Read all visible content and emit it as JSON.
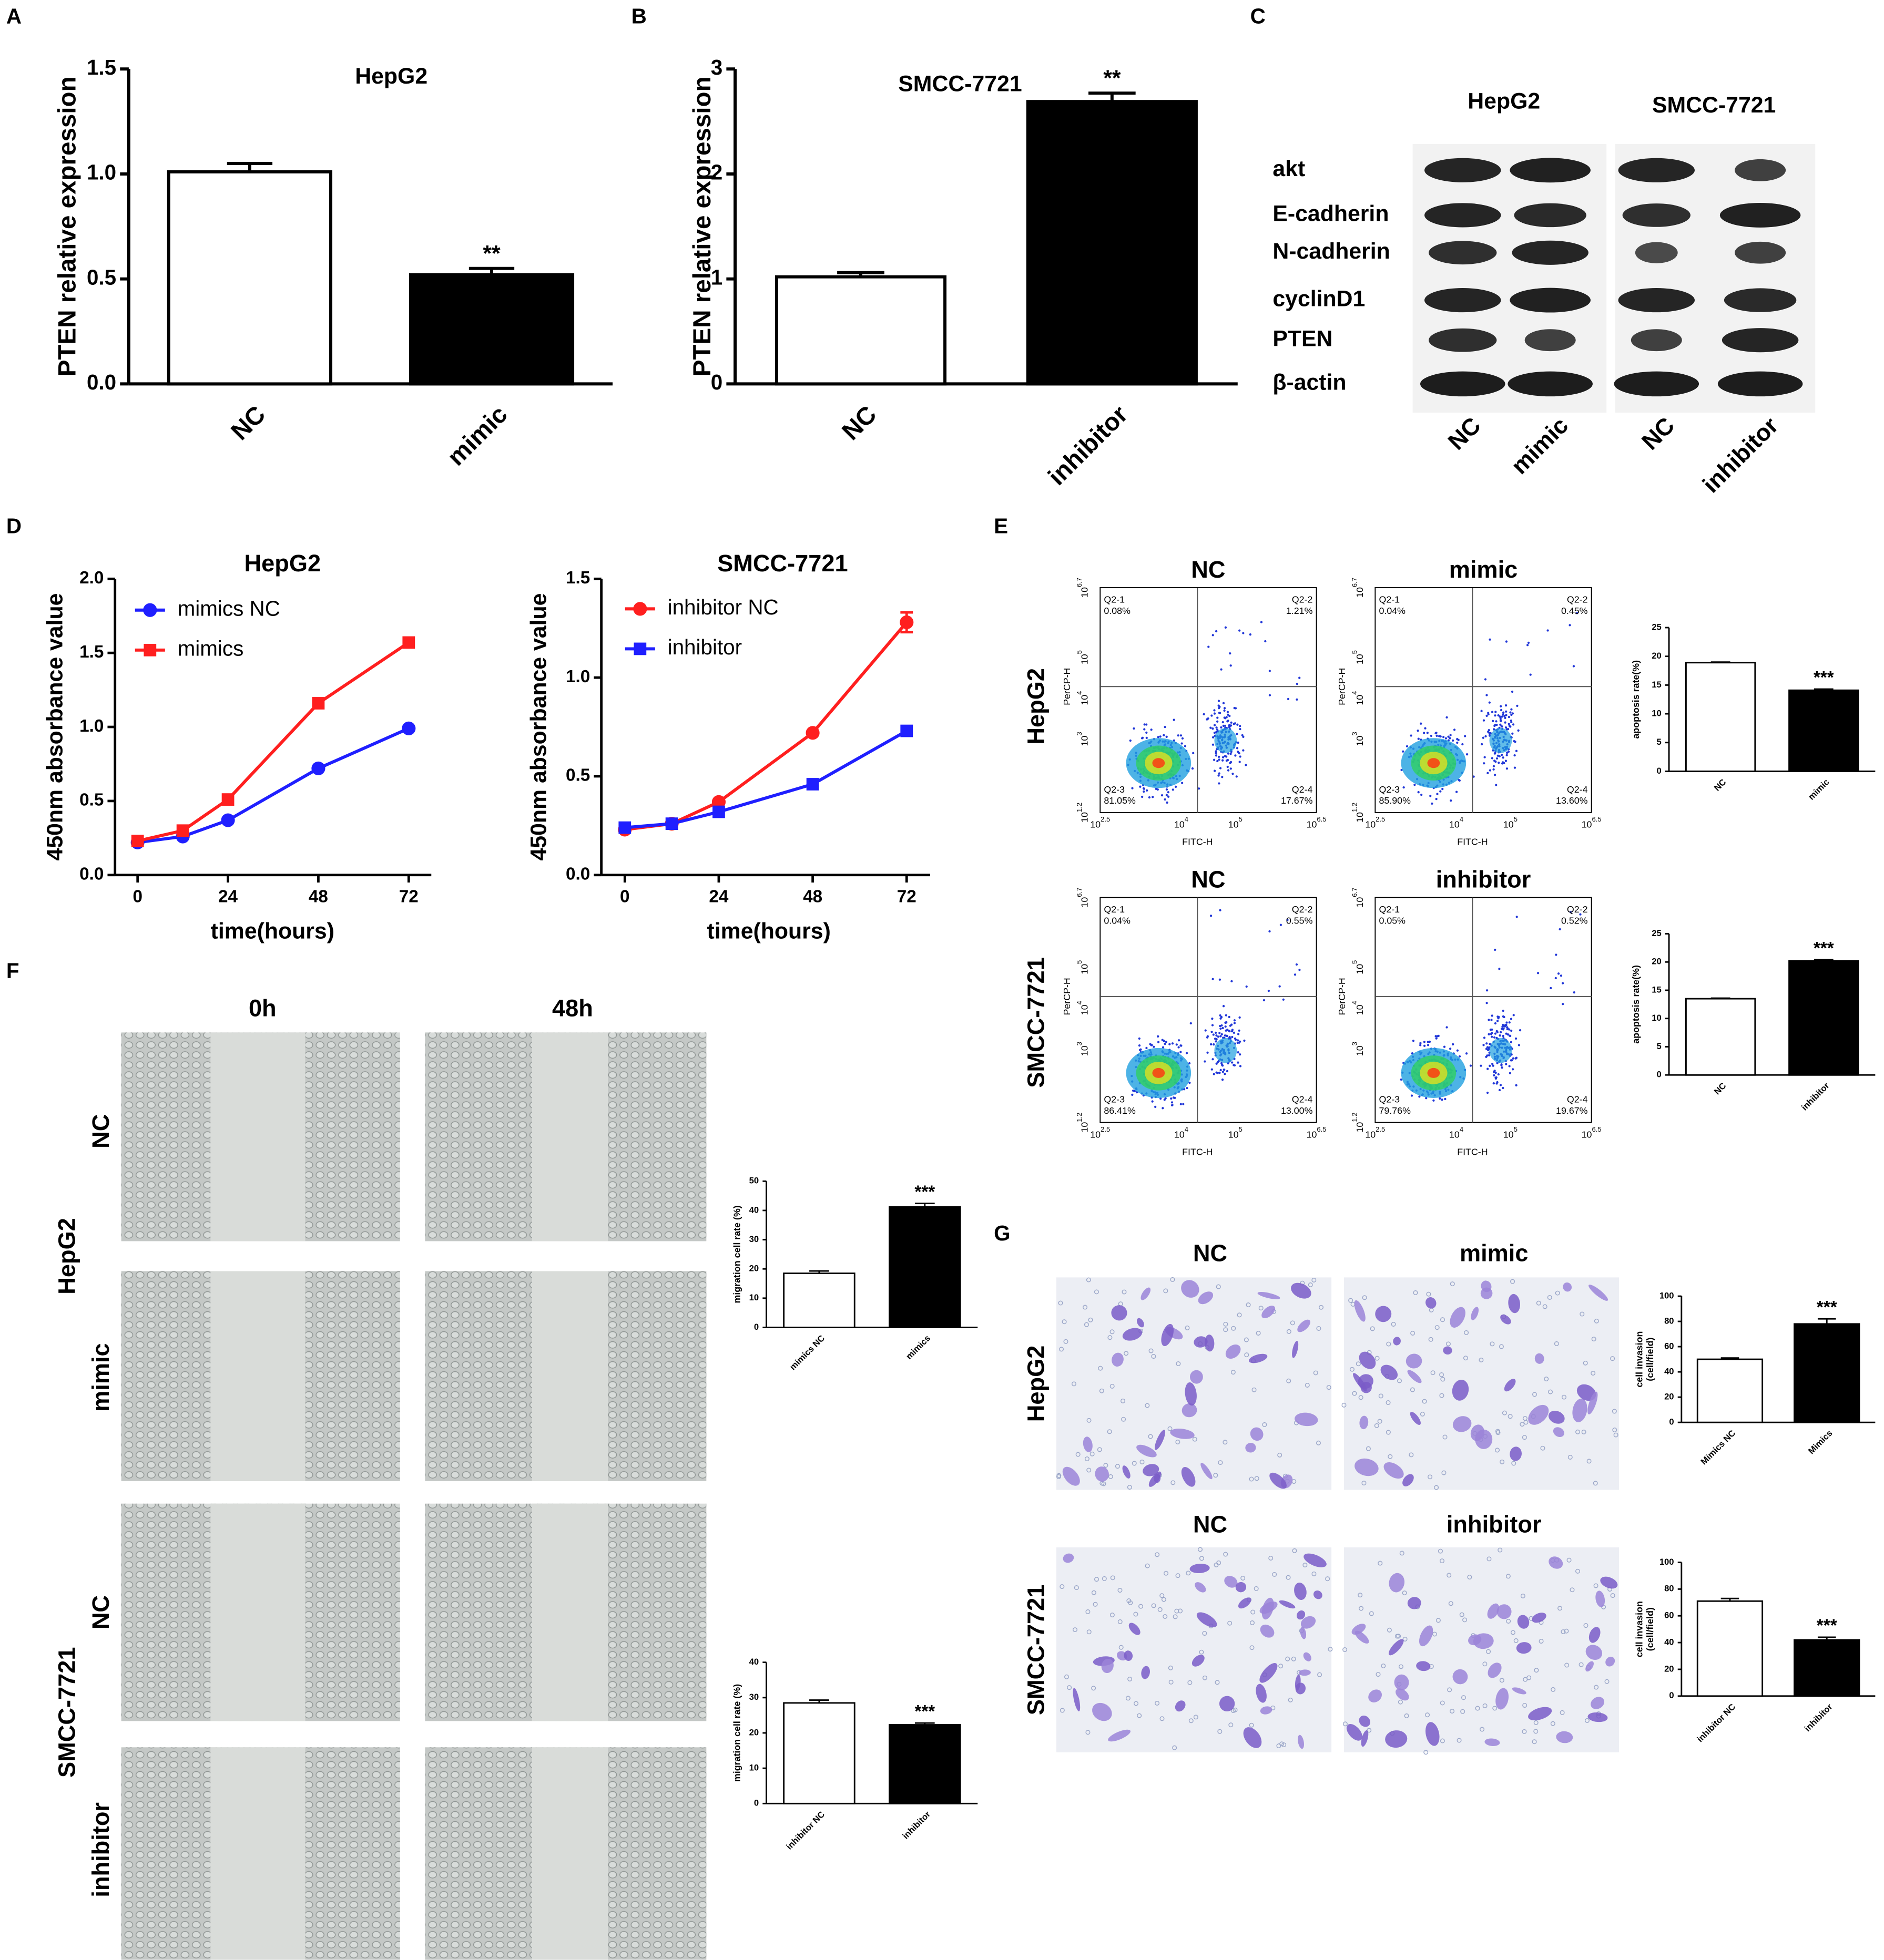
{
  "panels": [
    "A",
    "B",
    "C",
    "D",
    "E",
    "F",
    "G"
  ],
  "chart_data": [
    {
      "type": "bar",
      "title": "HepG2",
      "y_label": "PTEN relative expression",
      "categories": [
        "NC",
        "mimic"
      ],
      "values": [
        1.01,
        0.52
      ],
      "errors": [
        0.04,
        0.03
      ],
      "colors": [
        "#ffffff",
        "#000000"
      ],
      "significance": [
        null,
        "**"
      ],
      "ylim": [
        0,
        1.5
      ],
      "yticks": [
        {
          "value": 0,
          "label": "0.0"
        },
        0.5,
        {
          "value": 1,
          "label": "1.0"
        },
        1.5
      ]
    },
    {
      "type": "bar",
      "title": "SMCC-7721",
      "y_label": "PTEN relative expression",
      "categories": [
        "NC",
        "inhibitor"
      ],
      "values": [
        1.02,
        2.69
      ],
      "errors": [
        0.04,
        0.08
      ],
      "colors": [
        "#ffffff",
        "#000000"
      ],
      "significance": [
        null,
        "**"
      ],
      "ylim": [
        0,
        3
      ],
      "yticks": [
        0,
        1,
        2,
        3
      ]
    },
    {
      "type": "line",
      "title": "HepG2",
      "x_label": "time(hours)",
      "y_label": "450nm absorbance value",
      "x": [
        0,
        12,
        24,
        48,
        72
      ],
      "series": [
        {
          "name": "mimics NC",
          "color": "#1f1fff",
          "marker": "circle",
          "values": [
            0.22,
            0.26,
            0.37,
            0.72,
            0.99
          ]
        },
        {
          "name": "mimics",
          "color": "#ff1f1f",
          "marker": "square",
          "values": [
            0.23,
            0.3,
            0.51,
            1.16,
            1.57
          ]
        }
      ],
      "xlim": [
        -6,
        78
      ],
      "xticks": [
        0,
        24,
        48,
        72
      ],
      "ylim": [
        0,
        2
      ],
      "yticks": [
        {
          "value": 0,
          "label": "0.0"
        },
        0.5,
        {
          "value": 1,
          "label": "1.0"
        },
        1.5,
        {
          "value": 2,
          "label": "2.0"
        }
      ]
    },
    {
      "type": "line",
      "title": "SMCC-7721",
      "x_label": "time(hours)",
      "y_label": "450nm absorbance value",
      "x": [
        0,
        12,
        24,
        48,
        72
      ],
      "series": [
        {
          "name": "inhibitor NC",
          "color": "#ff1f1f",
          "marker": "circle",
          "values": [
            0.23,
            0.26,
            0.37,
            0.72,
            1.28
          ],
          "errors": [
            null,
            null,
            null,
            null,
            0.05
          ]
        },
        {
          "name": "inhibitor",
          "color": "#1f1fff",
          "marker": "square",
          "values": [
            0.24,
            0.26,
            0.32,
            0.46,
            0.73
          ]
        }
      ],
      "xlim": [
        -6,
        78
      ],
      "xticks": [
        0,
        24,
        48,
        72
      ],
      "ylim": [
        0,
        1.5
      ],
      "yticks": [
        {
          "value": 0,
          "label": "0.0"
        },
        0.5,
        {
          "value": 1,
          "label": "1.0"
        },
        1.5
      ]
    },
    {
      "type": "bar",
      "y_label": "apoptosis rate(%)",
      "categories": [
        "NC",
        "mimic"
      ],
      "values": [
        18.9,
        14.1
      ],
      "errors": [
        0.1,
        0.2
      ],
      "colors": [
        "#ffffff",
        "#000000"
      ],
      "significance": [
        null,
        "***"
      ],
      "ylim": [
        0,
        25
      ],
      "yticks": [
        0,
        5,
        10,
        15,
        20,
        25
      ]
    },
    {
      "type": "bar",
      "y_label": "apoptosis rate(%)",
      "categories": [
        "NC",
        "inhibitor"
      ],
      "values": [
        13.5,
        20.2
      ],
      "errors": [
        0.1,
        0.2
      ],
      "colors": [
        "#ffffff",
        "#000000"
      ],
      "significance": [
        null,
        "***"
      ],
      "ylim": [
        0,
        25
      ],
      "yticks": [
        0,
        5,
        10,
        15,
        20,
        25
      ]
    },
    {
      "type": "bar",
      "y_label": "migration cell rate (%)",
      "categories": [
        "mimics NC",
        "mimics"
      ],
      "values": [
        18.5,
        41.2
      ],
      "errors": [
        0.8,
        1.2
      ],
      "colors": [
        "#ffffff",
        "#000000"
      ],
      "significance": [
        null,
        "***"
      ],
      "ylim": [
        0,
        50
      ],
      "yticks": [
        0,
        10,
        20,
        30,
        40,
        50
      ]
    },
    {
      "type": "bar",
      "y_label": "migration cell rate (%)",
      "categories": [
        "inhibitor NC",
        "inhibitor"
      ],
      "values": [
        28.5,
        22.3
      ],
      "errors": [
        0.8,
        0.5
      ],
      "colors": [
        "#ffffff",
        "#000000"
      ],
      "significance": [
        null,
        "***"
      ],
      "ylim": [
        0,
        40
      ],
      "yticks": [
        0,
        10,
        20,
        30,
        40
      ]
    },
    {
      "type": "bar",
      "y_label": [
        "cell invasion",
        "(cell/field)"
      ],
      "categories": [
        "Mimics NC",
        "Mimics"
      ],
      "values": [
        50,
        78
      ],
      "errors": [
        1,
        4
      ],
      "colors": [
        "#ffffff",
        "#000000"
      ],
      "significance": [
        null,
        "***"
      ],
      "ylim": [
        0,
        100
      ],
      "yticks": [
        0,
        20,
        40,
        60,
        80,
        100
      ]
    },
    {
      "type": "bar",
      "y_label": [
        "cell invasion",
        "(cell/field)"
      ],
      "categories": [
        "inhibitor NC",
        "inhibitor"
      ],
      "values": [
        71,
        42
      ],
      "errors": [
        2,
        2
      ],
      "colors": [
        "#ffffff",
        "#000000"
      ],
      "significance": [
        null,
        "***"
      ],
      "ylim": [
        0,
        100
      ],
      "yticks": [
        0,
        20,
        40,
        60,
        80,
        100
      ]
    }
  ],
  "western_blot": {
    "cell_lines": [
      "HepG2",
      "SMCC-7721"
    ],
    "proteins": [
      "akt",
      "E-cadherin",
      "N-cadherin",
      "cyclinD1",
      "PTEN",
      "β-actin"
    ],
    "lanes": [
      "NC",
      "mimic",
      "NC",
      "inhibitor"
    ]
  },
  "flow_cytometry": {
    "rows": [
      "HepG2",
      "SMCC-7721"
    ],
    "x_label": "FITC-H",
    "y_label": "PerCP-H",
    "x_ticks": [
      [
        "10",
        "2.5"
      ],
      [
        "10",
        "4"
      ],
      [
        "10",
        "5"
      ],
      [
        "10",
        "6.5"
      ]
    ],
    "y_ticks": [
      [
        "10",
        "1.2"
      ],
      [
        "10",
        "3"
      ],
      [
        "10",
        "4"
      ],
      [
        "10",
        "5"
      ],
      [
        "10",
        "6.7"
      ]
    ],
    "plots": [
      {
        "title": "NC",
        "quadrants": [
          [
            "Q2-1",
            "0.08%"
          ],
          [
            "Q2-2",
            "1.21%"
          ],
          [
            "Q2-3",
            "81.05%"
          ],
          [
            "Q2-4",
            "17.67%"
          ]
        ]
      },
      {
        "title": "mimic",
        "quadrants": [
          [
            "Q2-1",
            "0.04%"
          ],
          [
            "Q2-2",
            "0.45%"
          ],
          [
            "Q2-3",
            "85.90%"
          ],
          [
            "Q2-4",
            "13.60%"
          ]
        ]
      },
      {
        "title": "NC",
        "quadrants": [
          [
            "Q2-1",
            "0.04%"
          ],
          [
            "Q2-2",
            "0.55%"
          ],
          [
            "Q2-3",
            "86.41%"
          ],
          [
            "Q2-4",
            "13.00%"
          ]
        ]
      },
      {
        "title": "inhibitor",
        "quadrants": [
          [
            "Q2-1",
            "0.05%"
          ],
          [
            "Q2-2",
            "0.52%"
          ],
          [
            "Q2-3",
            "79.76%"
          ],
          [
            "Q2-4",
            "19.67%"
          ]
        ]
      }
    ]
  },
  "wound_healing": {
    "times": [
      "0h",
      "48h"
    ],
    "rows": [
      "NC",
      "mimic",
      "NC",
      "inhibitor"
    ],
    "cell_lines": [
      "HepG2",
      "SMCC-7721"
    ]
  },
  "transwell": {
    "rows": [
      "HepG2",
      "SMCC-7721"
    ],
    "titles": [
      [
        "NC",
        "mimic"
      ],
      [
        "NC",
        "inhibitor"
      ]
    ]
  }
}
